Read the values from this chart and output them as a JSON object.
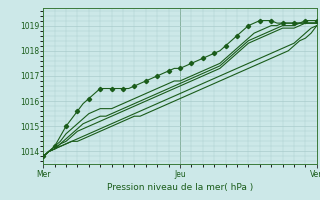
{
  "xlabel": "Pression niveau de la mer( hPa )",
  "background_color": "#cce8e8",
  "grid_color": "#aacccc",
  "line_color": "#1a5c1a",
  "marker_color": "#1a5c1a",
  "ylim": [
    1013.5,
    1019.7
  ],
  "xlim": [
    0,
    48
  ],
  "yticks": [
    1014,
    1015,
    1016,
    1017,
    1018,
    1019
  ],
  "xtick_positions": [
    0,
    24,
    48
  ],
  "xtick_labels": [
    "Mer",
    "Jeu",
    "Ven"
  ],
  "series": [
    [
      1013.8,
      1014.0,
      1014.2,
      1014.6,
      1015.0,
      1015.3,
      1015.6,
      1015.9,
      1016.1,
      1016.3,
      1016.5,
      1016.5,
      1016.5,
      1016.5,
      1016.5,
      1016.5,
      1016.6,
      1016.7,
      1016.8,
      1016.9,
      1017.0,
      1017.1,
      1017.2,
      1017.3,
      1017.3,
      1017.4,
      1017.5,
      1017.6,
      1017.7,
      1017.8,
      1017.9,
      1018.0,
      1018.2,
      1018.4,
      1018.6,
      1018.8,
      1019.0,
      1019.1,
      1019.2,
      1019.2,
      1019.2,
      1019.1,
      1019.1,
      1019.1,
      1019.1,
      1019.1,
      1019.2,
      1019.2,
      1019.2
    ],
    [
      1013.8,
      1014.0,
      1014.2,
      1014.4,
      1014.7,
      1014.9,
      1015.1,
      1015.3,
      1015.5,
      1015.6,
      1015.7,
      1015.7,
      1015.7,
      1015.8,
      1015.9,
      1016.0,
      1016.1,
      1016.2,
      1016.3,
      1016.4,
      1016.5,
      1016.6,
      1016.7,
      1016.8,
      1016.8,
      1016.9,
      1017.0,
      1017.1,
      1017.2,
      1017.3,
      1017.4,
      1017.5,
      1017.7,
      1017.9,
      1018.1,
      1018.3,
      1018.5,
      1018.7,
      1018.8,
      1018.9,
      1019.0,
      1019.0,
      1019.1,
      1019.1,
      1019.1,
      1019.1,
      1019.1,
      1019.1,
      1019.1
    ],
    [
      1013.8,
      1014.0,
      1014.1,
      1014.3,
      1014.5,
      1014.7,
      1014.9,
      1015.1,
      1015.2,
      1015.3,
      1015.4,
      1015.4,
      1015.5,
      1015.6,
      1015.7,
      1015.8,
      1015.9,
      1016.0,
      1016.1,
      1016.2,
      1016.3,
      1016.4,
      1016.5,
      1016.6,
      1016.7,
      1016.8,
      1016.9,
      1017.0,
      1017.1,
      1017.2,
      1017.3,
      1017.4,
      1017.6,
      1017.8,
      1018.0,
      1018.2,
      1018.4,
      1018.5,
      1018.6,
      1018.7,
      1018.8,
      1018.9,
      1019.0,
      1019.0,
      1019.0,
      1019.1,
      1019.1,
      1019.1,
      1019.1
    ],
    [
      1013.8,
      1014.0,
      1014.1,
      1014.3,
      1014.4,
      1014.6,
      1014.8,
      1014.9,
      1015.0,
      1015.1,
      1015.2,
      1015.3,
      1015.4,
      1015.5,
      1015.6,
      1015.7,
      1015.8,
      1015.9,
      1016.0,
      1016.1,
      1016.2,
      1016.3,
      1016.4,
      1016.5,
      1016.6,
      1016.7,
      1016.8,
      1016.9,
      1017.0,
      1017.1,
      1017.2,
      1017.3,
      1017.5,
      1017.7,
      1017.9,
      1018.1,
      1018.3,
      1018.4,
      1018.5,
      1018.6,
      1018.7,
      1018.8,
      1018.9,
      1018.9,
      1018.9,
      1019.0,
      1019.1,
      1019.1,
      1019.1
    ],
    [
      1013.8,
      1014.0,
      1014.1,
      1014.2,
      1014.3,
      1014.4,
      1014.5,
      1014.6,
      1014.7,
      1014.8,
      1014.9,
      1015.0,
      1015.1,
      1015.2,
      1015.3,
      1015.4,
      1015.5,
      1015.6,
      1015.7,
      1015.8,
      1015.9,
      1016.0,
      1016.1,
      1016.2,
      1016.3,
      1016.4,
      1016.5,
      1016.6,
      1016.7,
      1016.8,
      1016.9,
      1017.0,
      1017.1,
      1017.2,
      1017.3,
      1017.4,
      1017.5,
      1017.6,
      1017.7,
      1017.8,
      1017.9,
      1018.0,
      1018.1,
      1018.2,
      1018.3,
      1018.5,
      1018.7,
      1018.9,
      1019.0
    ],
    [
      1013.8,
      1014.0,
      1014.1,
      1014.2,
      1014.3,
      1014.4,
      1014.4,
      1014.5,
      1014.6,
      1014.7,
      1014.8,
      1014.9,
      1015.0,
      1015.1,
      1015.2,
      1015.3,
      1015.4,
      1015.4,
      1015.5,
      1015.6,
      1015.7,
      1015.8,
      1015.9,
      1016.0,
      1016.1,
      1016.2,
      1016.3,
      1016.4,
      1016.5,
      1016.6,
      1016.7,
      1016.8,
      1016.9,
      1017.0,
      1017.1,
      1017.2,
      1017.3,
      1017.4,
      1017.5,
      1017.6,
      1017.7,
      1017.8,
      1017.9,
      1018.0,
      1018.2,
      1018.4,
      1018.5,
      1018.7,
      1019.0
    ]
  ]
}
